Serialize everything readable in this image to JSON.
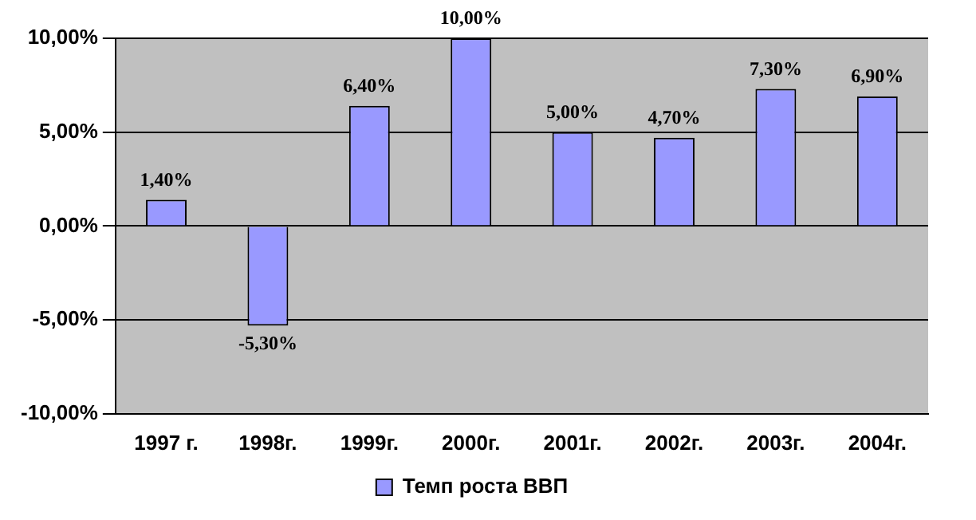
{
  "chart_data": {
    "type": "bar",
    "categories": [
      "1997 г.",
      "1998г.",
      "1999г.",
      "2000г.",
      "2001г.",
      "2002г.",
      "2003г.",
      "2004г."
    ],
    "series": [
      {
        "name": "Темп роста ВВП",
        "color": "#9999ff",
        "values": [
          1.4,
          -5.3,
          6.4,
          10.0,
          5.0,
          4.7,
          7.3,
          6.9
        ],
        "value_labels": [
          "1,40%",
          "-5,30%",
          "6,40%",
          "10,00%",
          "5,00%",
          "4,70%",
          "7,30%",
          "6,90%"
        ]
      }
    ],
    "ylim": [
      -10,
      10
    ],
    "yticks": [
      {
        "value": -10,
        "label": "-10,00%"
      },
      {
        "value": -5,
        "label": "-5,00%"
      },
      {
        "value": 0,
        "label": "0,00%"
      },
      {
        "value": 5,
        "label": "5,00%"
      },
      {
        "value": 10,
        "label": "10,00%"
      }
    ],
    "grid": "y",
    "legend": "bottom"
  }
}
